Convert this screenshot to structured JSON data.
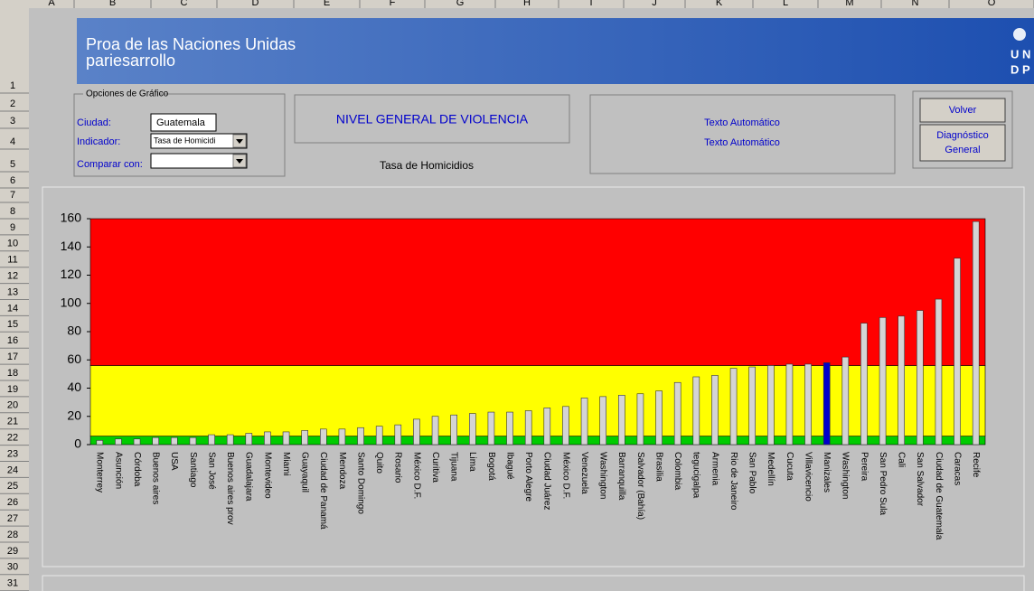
{
  "columns": [
    "A",
    "B",
    "C",
    "D",
    "E",
    "F",
    "G",
    "H",
    "I",
    "J",
    "K",
    "L",
    "M",
    "N",
    "O"
  ],
  "row_numbers": [
    1,
    2,
    3,
    4,
    5,
    6,
    7,
    8,
    9,
    10,
    11,
    12,
    13,
    14,
    15,
    16,
    17,
    18,
    19,
    20,
    21,
    22,
    23,
    24,
    25,
    26,
    27,
    28,
    29,
    30,
    31
  ],
  "banner": {
    "line1": "Proa de las Naciones Unidas",
    "line2": "pariesarrollo",
    "logo": [
      "U N",
      "D P"
    ]
  },
  "options": {
    "legend": "Opciones de Gráfico",
    "city_label": "Ciudad:",
    "city_value": "Guatemala",
    "indicator_label": "Indicador:",
    "indicator_value": "Tasa de Homicidi",
    "compare_label": "Comparar con:"
  },
  "heading": "NIVEL GENERAL DE VIOLENCIA",
  "subheading": "Tasa de Homicidios",
  "auto_texts": [
    "Texto Automático",
    "Texto Automático"
  ],
  "buttons": [
    "Volver",
    "Diagnóstico General"
  ],
  "chart_data": {
    "type": "bar",
    "categories": [
      "Monterrey",
      "Asunción",
      "Córdoba",
      "Buenos aires",
      "USA",
      "Santiago",
      "San José",
      "Buenos aires prov",
      "Guadalajara",
      "Montevideo",
      "Miami",
      "Guayaquil",
      "Ciudad de Panamá",
      "Mendoza",
      "Santo Domingo",
      "Quito",
      "Rosario",
      "México D.F.",
      "Curitiva",
      "Tijuana",
      "Lima",
      "Bogotá",
      "Ibagué",
      "Porto Alegre",
      "Ciudad Juárez",
      "México D.F.",
      "Venezuela",
      "Washington",
      "Barranquilla",
      "Salvador (Bahía)",
      "Brasilia",
      "Colombia",
      "tegucigalpa",
      "Armenia",
      "Rio de Janeiro",
      "San Pablo",
      "Medellín",
      "Cucuta",
      "Villavicencio",
      "Manizales",
      "Washington",
      "Pereira",
      "San Pedro Sula",
      "Cali",
      "San Salvador",
      "Ciudad de Guatemala",
      "Caracas",
      "Recife"
    ],
    "values": [
      3,
      4,
      4,
      5,
      5,
      5,
      7,
      7,
      8,
      9,
      9,
      10,
      11,
      11,
      12,
      13,
      14,
      18,
      20,
      21,
      22,
      23,
      23,
      24,
      26,
      27,
      33,
      34,
      35,
      36,
      38,
      44,
      48,
      49,
      54,
      55,
      56,
      57,
      57,
      58,
      62,
      86,
      90,
      91,
      95,
      103,
      132,
      158
    ],
    "color": "#d4d4d4",
    "highlight_index": 39,
    "highlight_color": "#0000cc",
    "bands": [
      {
        "from": 0,
        "to": 6,
        "color": "#00cc00"
      },
      {
        "from": 6,
        "to": 56,
        "color": "#ffff00"
      },
      {
        "from": 56,
        "to": 160,
        "color": "#ff0000"
      }
    ],
    "ylim": [
      0,
      160
    ],
    "yticks": [
      0,
      20,
      40,
      60,
      80,
      100,
      120,
      140,
      160
    ]
  }
}
